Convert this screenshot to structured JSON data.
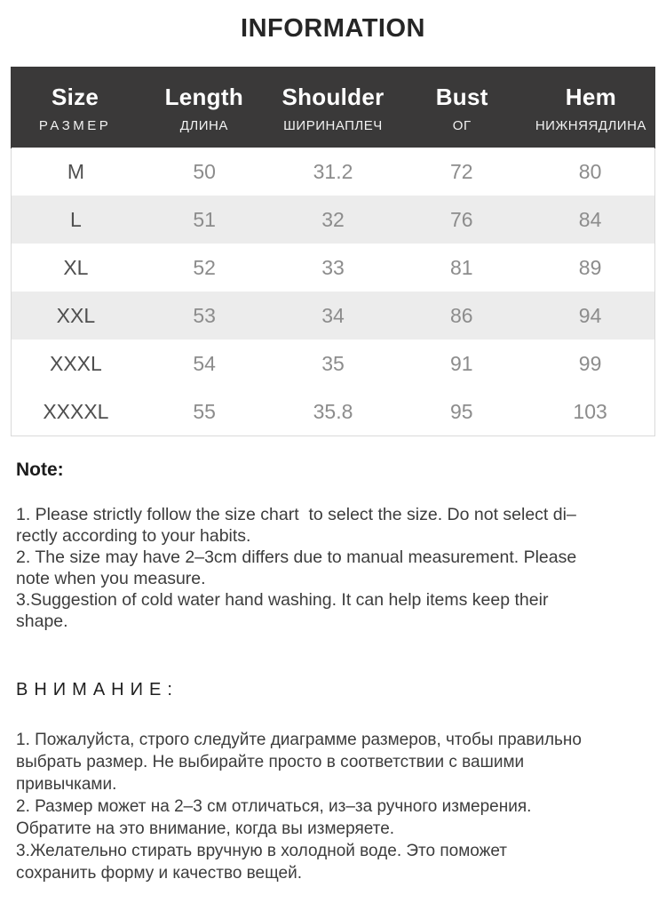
{
  "title": "INFORMATION",
  "table": {
    "columns": [
      {
        "en": "Size",
        "ru": "РАЗМЕР"
      },
      {
        "en": "Length",
        "ru": "ДЛИНА"
      },
      {
        "en": "Shoulder",
        "ru": "ШИРИНАПЛЕЧ"
      },
      {
        "en": "Bust",
        "ru": "ОГ"
      },
      {
        "en": "Hem",
        "ru": "НИЖНЯЯДЛИНА"
      }
    ],
    "rows": [
      {
        "cells": [
          "M",
          "50",
          "31.2",
          "72",
          "80"
        ]
      },
      {
        "cells": [
          "L",
          "51",
          "32",
          "76",
          "84"
        ]
      },
      {
        "cells": [
          "XL",
          "52",
          "33",
          "81",
          "89"
        ]
      },
      {
        "cells": [
          "XXL",
          "53",
          "34",
          "86",
          "94"
        ]
      },
      {
        "cells": [
          "XXXL",
          "54",
          "35",
          "91",
          "99"
        ]
      },
      {
        "cells": [
          "XXXXL",
          "55",
          "35.8",
          "95",
          "103"
        ]
      }
    ],
    "alt_row_indexes": [
      1,
      3
    ]
  },
  "notes_en": {
    "heading": "Note:",
    "items": [
      "1. Please strictly follow the size chart  to select the size. Do not select di–\nrectly according to your habits.",
      "2. The size may have 2–3cm differs due to manual measurement. Please\nnote when you measure.",
      "3.Suggestion of cold water hand washing. It can help items keep their\nshape."
    ]
  },
  "notes_ru": {
    "heading": "ВНИМАНИЕ:",
    "items": [
      "1. Пожалуйста, строго следуйте диаграмме размеров, чтобы правильно\nвыбрать размер. Не выбирайте просто в соответствии с вашими\nпривычками.",
      "2. Размер может на 2–3 см отличаться, из–за ручного измерения.\nОбратите на это внимание, когда вы измеряете.",
      "3.Желательно стирать вручную в холодной воде. Это поможет\nсохранить форму и качество вещей."
    ]
  },
  "colors": {
    "header_bg": "#3a3939",
    "header_text": "#ffffff",
    "alt_row_bg": "#ececec",
    "table_border": "#d9d9d9",
    "size_label_text": "#4f4f4f",
    "value_text": "#8c8c8c"
  }
}
